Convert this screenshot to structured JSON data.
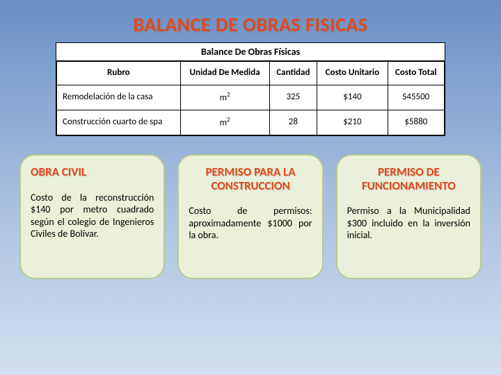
{
  "title": "BALANCE DE OBRAS FISICAS",
  "table": {
    "caption": "Balance De Obras Físicas",
    "headers": {
      "rubro": "Rubro",
      "unidad": "Unidad De Medida",
      "cantidad": "Cantidad",
      "unitario": "Costo Unitario",
      "total": "Costo Total"
    },
    "rows": [
      {
        "rubro": "Remodelación de la casa",
        "unidad_base": "m",
        "unidad_exp": "2",
        "cantidad": "325",
        "unitario": "$140",
        "total": "S45500"
      },
      {
        "rubro": "Construcción cuarto de spa",
        "unidad_base": "m",
        "unidad_exp": "2",
        "cantidad": "28",
        "unitario": "$210",
        "total": "$5880"
      }
    ]
  },
  "cards": [
    {
      "title": "OBRA CIVIL",
      "title_align": "left",
      "body": "Costo de la reconstrucción $140 por metro cuadrado según el colegio de Ingenieros Civiles de Bolívar."
    },
    {
      "title": "PERMISO PARA LA CONSTRUCCION",
      "title_align": "center",
      "body": "Costo de permisos: aproximadamente $1000 por la obra."
    },
    {
      "title": "PERMISO DE FUNCIONAMIENTO",
      "title_align": "center",
      "body": "Permiso a la Municipalidad $300 incluido en la inversión inicial."
    }
  ],
  "styles": {
    "accent_color": "#e04a1e",
    "card_bg": "#eaf0da",
    "card_border": "#b7c990",
    "title_fontsize": 28,
    "card_title_fontsize": 17,
    "card_body_fontsize": 14,
    "table_fontsize": 13
  }
}
